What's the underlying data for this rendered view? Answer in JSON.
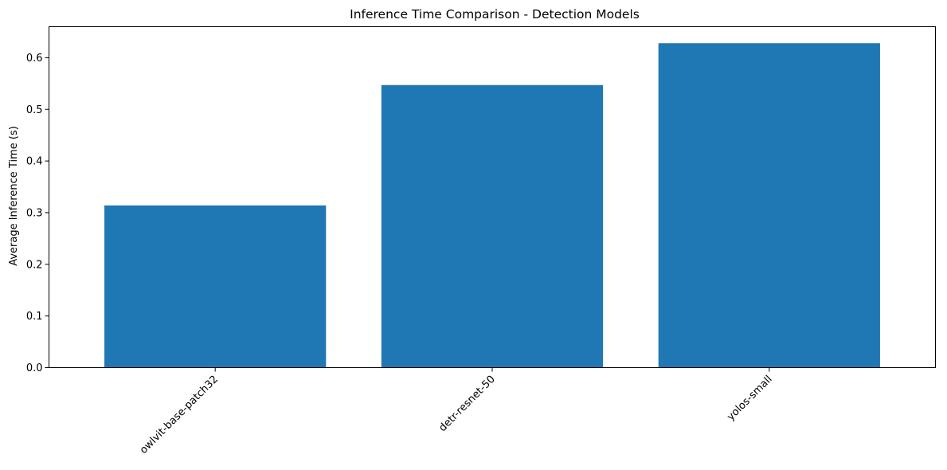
{
  "chart_data": {
    "type": "bar",
    "title": "Inference Time Comparison - Detection Models",
    "xlabel": "",
    "ylabel": "Average Inference Time (s)",
    "categories": [
      "owlvit-base-patch32",
      "detr-resnet-50",
      "yolos-small"
    ],
    "values": [
      0.314,
      0.547,
      0.628
    ],
    "ylim": [
      0,
      0.66
    ],
    "yticks": [
      0.0,
      0.1,
      0.2,
      0.3,
      0.4,
      0.5,
      0.6
    ],
    "ytick_labels": [
      "0.0",
      "0.1",
      "0.2",
      "0.3",
      "0.4",
      "0.5",
      "0.6"
    ],
    "bar_color": "#1f77b4",
    "grid": false,
    "xtick_rotation_deg": 45
  }
}
